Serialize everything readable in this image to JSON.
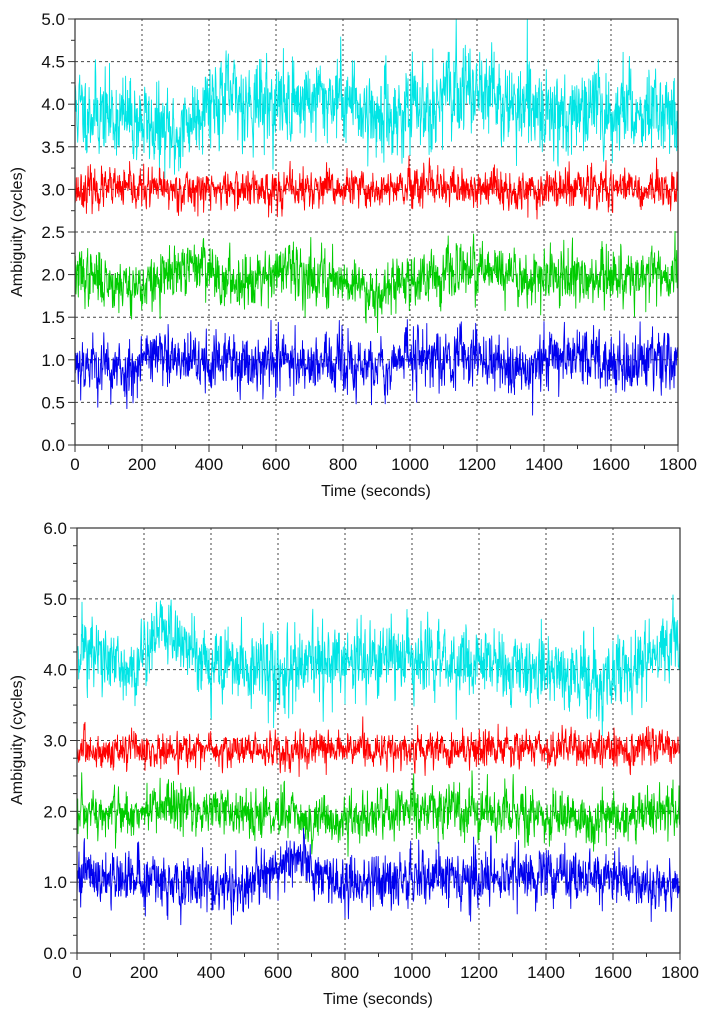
{
  "chart_data": [
    {
      "type": "line",
      "title": "",
      "xlabel": "Time (seconds)",
      "ylabel": "Ambiguity (cycles)",
      "xlim": [
        0,
        1800
      ],
      "ylim": [
        0,
        5.0
      ],
      "x_ticks": [
        0,
        200,
        400,
        600,
        800,
        1000,
        1200,
        1400,
        1600,
        1800
      ],
      "x_tick_labels": [
        "0",
        "200",
        "400",
        "600",
        "800",
        "1000",
        "1200",
        "1400",
        "1600",
        "1800"
      ],
      "y_ticks": [
        0,
        0.5,
        1.0,
        1.5,
        2.0,
        2.5,
        3.0,
        3.5,
        4.0,
        4.5,
        5.0
      ],
      "y_tick_labels": [
        "0.0",
        "0.5",
        "1.0",
        "1.5",
        "2.0",
        "2.5",
        "3.0",
        "3.5",
        "4.0",
        "4.5",
        "5.0"
      ],
      "y_minor_step": 0.25,
      "x_minor_step": 100,
      "grid": true,
      "sample_interval": 1,
      "series": [
        {
          "name": "cyan",
          "color": "#00e5e5",
          "mean": 3.95,
          "noise": 0.28,
          "drift": [
            [
              0,
              3.95
            ],
            [
              200,
              3.8
            ],
            [
              300,
              3.6
            ],
            [
              400,
              4.1
            ],
            [
              600,
              4.0
            ],
            [
              800,
              4.1
            ],
            [
              900,
              3.85
            ],
            [
              1000,
              3.9
            ],
            [
              1200,
              4.25
            ],
            [
              1300,
              3.95
            ],
            [
              1500,
              3.9
            ],
            [
              1800,
              3.95
            ]
          ],
          "seed": 11
        },
        {
          "name": "red",
          "color": "#ff0000",
          "mean": 3.0,
          "noise": 0.13,
          "drift": [
            [
              0,
              3.0
            ],
            [
              1800,
              3.0
            ]
          ],
          "seed": 23
        },
        {
          "name": "green",
          "color": "#00cc00",
          "mean": 2.0,
          "noise": 0.18,
          "drift": [
            [
              0,
              2.0
            ],
            [
              200,
              1.85
            ],
            [
              300,
              2.0
            ],
            [
              380,
              2.15
            ],
            [
              450,
              1.9
            ],
            [
              600,
              2.05
            ],
            [
              800,
              1.95
            ],
            [
              900,
              1.8
            ],
            [
              1000,
              1.95
            ],
            [
              1200,
              2.05
            ],
            [
              1400,
              1.95
            ],
            [
              1800,
              2.0
            ]
          ],
          "seed": 37
        },
        {
          "name": "blue",
          "color": "#0000ee",
          "mean": 1.0,
          "noise": 0.2,
          "drift": [
            [
              0,
              1.0
            ],
            [
              150,
              0.85
            ],
            [
              220,
              1.1
            ],
            [
              300,
              0.95
            ],
            [
              600,
              1.0
            ],
            [
              900,
              0.9
            ],
            [
              1000,
              1.05
            ],
            [
              1200,
              1.05
            ],
            [
              1350,
              0.85
            ],
            [
              1450,
              1.1
            ],
            [
              1600,
              0.95
            ],
            [
              1800,
              1.0
            ]
          ],
          "seed": 53
        }
      ]
    },
    {
      "type": "line",
      "title": "",
      "xlabel": "Time (seconds)",
      "ylabel": "Ambiguity (cycles)",
      "xlim": [
        0,
        1800
      ],
      "ylim": [
        0,
        6.0
      ],
      "x_ticks": [
        0,
        200,
        400,
        600,
        800,
        1000,
        1200,
        1400,
        1600,
        1800
      ],
      "x_tick_labels": [
        "0",
        "200",
        "400",
        "600",
        "800",
        "1000",
        "1200",
        "1400",
        "1600",
        "1800"
      ],
      "y_ticks": [
        0,
        1.0,
        2.0,
        3.0,
        4.0,
        5.0,
        6.0
      ],
      "y_tick_labels": [
        "0.0",
        "1.0",
        "2.0",
        "3.0",
        "4.0",
        "5.0",
        "6.0"
      ],
      "y_minor_step": 0.25,
      "x_minor_step": 100,
      "grid": true,
      "sample_interval": 1,
      "series": [
        {
          "name": "cyan",
          "color": "#00e5e5",
          "mean": 4.1,
          "noise": 0.3,
          "drift": [
            [
              0,
              4.4
            ],
            [
              150,
              3.9
            ],
            [
              250,
              4.6
            ],
            [
              400,
              4.1
            ],
            [
              600,
              3.95
            ],
            [
              800,
              4.1
            ],
            [
              1000,
              4.15
            ],
            [
              1200,
              4.1
            ],
            [
              1400,
              4.0
            ],
            [
              1550,
              3.8
            ],
            [
              1700,
              4.1
            ],
            [
              1800,
              4.4
            ]
          ],
          "seed": 71
        },
        {
          "name": "red",
          "color": "#ff0000",
          "mean": 2.9,
          "noise": 0.14,
          "drift": [
            [
              0,
              2.85
            ],
            [
              1800,
              2.9
            ]
          ],
          "seed": 83
        },
        {
          "name": "green",
          "color": "#00cc00",
          "mean": 1.95,
          "noise": 0.2,
          "drift": [
            [
              0,
              1.9
            ],
            [
              300,
              2.05
            ],
            [
              500,
              2.0
            ],
            [
              800,
              1.85
            ],
            [
              1000,
              2.05
            ],
            [
              1200,
              2.0
            ],
            [
              1500,
              1.9
            ],
            [
              1800,
              2.0
            ]
          ],
          "seed": 97
        },
        {
          "name": "blue",
          "color": "#0000ee",
          "mean": 1.05,
          "noise": 0.22,
          "drift": [
            [
              0,
              1.1
            ],
            [
              300,
              1.0
            ],
            [
              500,
              0.95
            ],
            [
              650,
              1.3
            ],
            [
              800,
              0.95
            ],
            [
              1000,
              1.1
            ],
            [
              1200,
              1.05
            ],
            [
              1500,
              1.1
            ],
            [
              1800,
              0.95
            ]
          ],
          "seed": 101
        }
      ]
    }
  ]
}
